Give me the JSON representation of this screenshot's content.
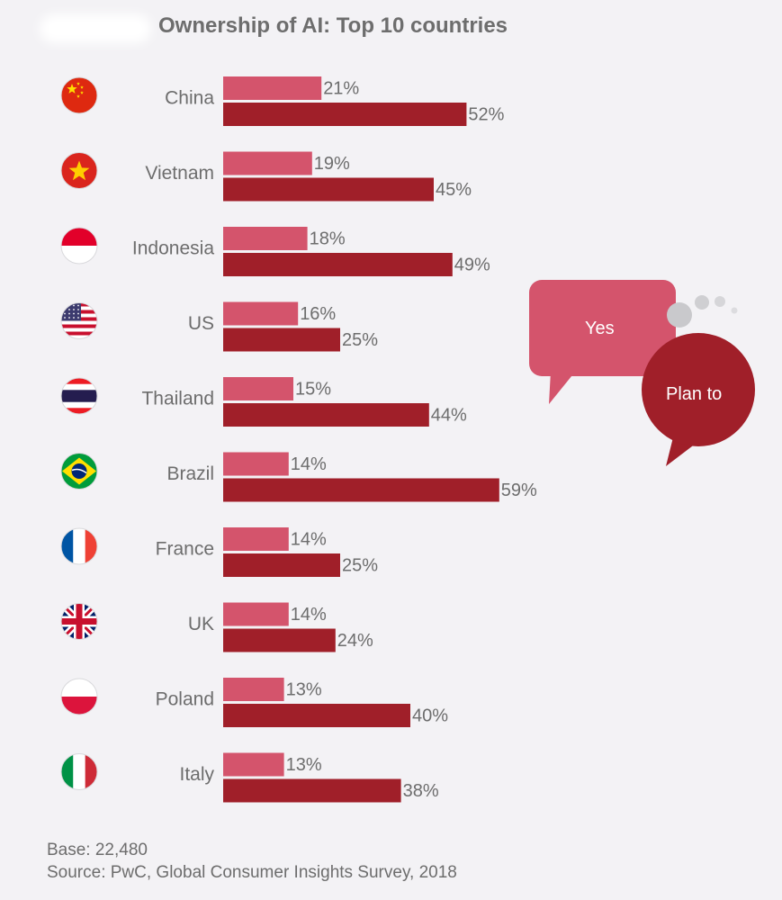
{
  "chart_data": {
    "type": "bar",
    "orientation": "horizontal",
    "title": "Ownership of AI: Top 10 countries",
    "categories": [
      "China",
      "Vietnam",
      "Indonesia",
      "US",
      "Thailand",
      "Brazil",
      "France",
      "UK",
      "Poland",
      "Italy"
    ],
    "series": [
      {
        "name": "Yes",
        "values": [
          21,
          19,
          18,
          16,
          15,
          14,
          14,
          14,
          13,
          13
        ],
        "color": "#d4546c"
      },
      {
        "name": "Plan to",
        "values": [
          52,
          45,
          49,
          25,
          44,
          59,
          25,
          24,
          40,
          38
        ],
        "color": "#a01f29"
      }
    ],
    "value_suffix": "%",
    "legend_placement": "right",
    "grid": false
  },
  "footer": {
    "base": "Base: 22,480",
    "source": "Source: PwC, Global Consumer Insights Survey, 2018"
  },
  "flags": [
    "china-flag-icon",
    "vietnam-flag-icon",
    "indonesia-flag-icon",
    "us-flag-icon",
    "thailand-flag-icon",
    "brazil-flag-icon",
    "france-flag-icon",
    "uk-flag-icon",
    "poland-flag-icon",
    "italy-flag-icon"
  ],
  "colors": {
    "text": "#6d6d6d",
    "background": "#f3f2f5"
  }
}
